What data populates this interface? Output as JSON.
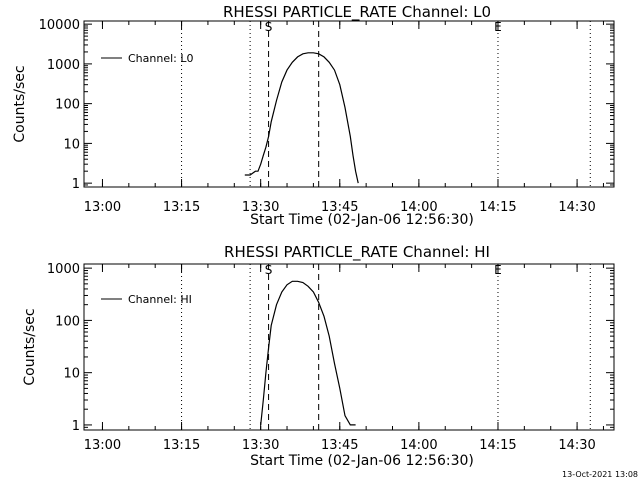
{
  "footer": "13-Oct-2021 13:08",
  "chart_data": [
    {
      "type": "line",
      "title": "RHESSI PARTICLE_RATE Channel: L0",
      "xlabel": "Start Time (02-Jan-06 12:56:30)",
      "ylabel": "Counts/sec",
      "legend": [
        "Channel: L0"
      ],
      "legend_position": "top-left",
      "y_scale": "log",
      "ylim": [
        0.8,
        12000
      ],
      "xlim": [
        "12:56:30",
        "14:37:00"
      ],
      "x_ticks": [
        "13:00",
        "13:15",
        "13:30",
        "13:45",
        "14:00",
        "14:15",
        "14:30"
      ],
      "y_ticks": [
        "1",
        "10",
        "100",
        "1000",
        "10000"
      ],
      "markers": {
        "S": "13:31:30",
        "E": "14:15:00",
        "end": "13:41:00"
      },
      "dotted_lines": [
        "12:56:30",
        "13:15:00",
        "13:28:00",
        "14:15:00",
        "14:32:30"
      ],
      "series": [
        {
          "name": "Channel: L0",
          "x": [
            "13:27:00",
            "13:28:00",
            "13:29:00",
            "13:29:30",
            "13:30:00",
            "13:30:30",
            "13:31:00",
            "13:31:30",
            "13:32:00",
            "13:33:00",
            "13:34:00",
            "13:35:00",
            "13:36:00",
            "13:37:00",
            "13:38:00",
            "13:39:00",
            "13:40:00",
            "13:41:00",
            "13:42:00",
            "13:43:00",
            "13:44:00",
            "13:45:00",
            "13:46:00",
            "13:47:00",
            "13:47:30",
            "13:48:00",
            "13:48:30"
          ],
          "values": [
            1.6,
            1.6,
            2,
            2,
            3,
            5,
            8,
            15,
            35,
            120,
            350,
            700,
            1100,
            1500,
            1800,
            1900,
            1900,
            1800,
            1500,
            1100,
            700,
            300,
            80,
            15,
            5,
            2,
            1
          ]
        }
      ]
    },
    {
      "type": "line",
      "title": "RHESSI PARTICLE_RATE Channel: HI",
      "xlabel": "Start Time (02-Jan-06 12:56:30)",
      "ylabel": "Counts/sec",
      "legend": [
        "Channel: HI"
      ],
      "legend_position": "top-left",
      "y_scale": "log",
      "ylim": [
        0.8,
        1200
      ],
      "xlim": [
        "12:56:30",
        "14:37:00"
      ],
      "x_ticks": [
        "13:00",
        "13:15",
        "13:30",
        "13:45",
        "14:00",
        "14:15",
        "14:30"
      ],
      "y_ticks": [
        "1",
        "10",
        "100",
        "1000"
      ],
      "markers": {
        "S": "13:31:30",
        "E": "14:15:00",
        "end": "13:41:00"
      },
      "dotted_lines": [
        "12:56:30",
        "13:15:00",
        "13:28:00",
        "14:15:00",
        "14:32:30"
      ],
      "series": [
        {
          "name": "Channel: HI",
          "x": [
            "13:30:00",
            "13:30:30",
            "13:31:00",
            "13:31:30",
            "13:32:00",
            "13:33:00",
            "13:34:00",
            "13:35:00",
            "13:36:00",
            "13:37:00",
            "13:38:00",
            "13:39:00",
            "13:40:00",
            "13:41:00",
            "13:42:00",
            "13:43:00",
            "13:44:00",
            "13:45:00",
            "13:46:00",
            "13:47:00",
            "13:48:00"
          ],
          "values": [
            1,
            3,
            10,
            30,
            80,
            200,
            350,
            480,
            560,
            560,
            530,
            450,
            350,
            220,
            120,
            50,
            15,
            5,
            1.5,
            1,
            1
          ]
        }
      ]
    }
  ]
}
